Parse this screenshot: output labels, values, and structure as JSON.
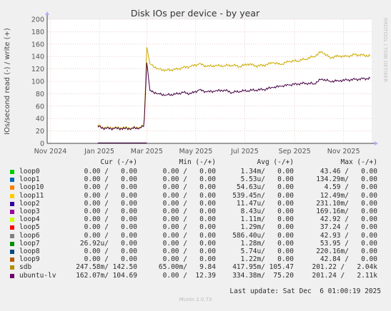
{
  "chart_data": {
    "type": "line",
    "title": "Disk IOs per device - by year",
    "ylabel": "IOs/second read (-) / write (+)",
    "ylim": [
      0,
      200
    ],
    "yticks": [
      0,
      20,
      40,
      60,
      80,
      100,
      120,
      140,
      160,
      180,
      200
    ],
    "xticks": [
      "Nov 2024",
      "Jan 2025",
      "Mar 2025",
      "May 2025",
      "Jul 2025",
      "Sep 2025",
      "Nov 2025"
    ],
    "x_range": [
      "2024-10-28",
      "2025-12-06"
    ],
    "grid": true,
    "series": [
      {
        "name": "sdb",
        "color": "#ccaa00",
        "x": [
          "2024-12-30",
          "2025-01-03",
          "2025-01-10",
          "2025-01-20",
          "2025-02-01",
          "2025-02-10",
          "2025-02-20",
          "2025-02-25",
          "2025-02-26",
          "2025-02-27",
          "2025-03-01",
          "2025-03-05",
          "2025-03-15",
          "2025-03-25",
          "2025-04-05",
          "2025-04-15",
          "2025-04-25",
          "2025-05-05",
          "2025-05-15",
          "2025-05-25",
          "2025-06-05",
          "2025-06-15",
          "2025-06-25",
          "2025-07-05",
          "2025-07-15",
          "2025-07-25",
          "2025-08-05",
          "2025-08-15",
          "2025-08-25",
          "2025-09-05",
          "2025-09-15",
          "2025-09-25",
          "2025-10-05",
          "2025-10-15",
          "2025-10-25",
          "2025-11-05",
          "2025-11-15",
          "2025-11-25",
          "2025-12-04"
        ],
        "values": [
          30,
          26,
          25,
          25,
          25,
          25,
          26,
          28,
          45,
          80,
          155,
          128,
          120,
          118,
          119,
          122,
          124,
          128,
          124,
          125,
          125,
          126,
          124,
          128,
          125,
          126,
          130,
          127,
          132,
          133,
          136,
          140,
          148,
          138,
          141,
          140,
          143,
          142,
          141
        ]
      },
      {
        "name": "ubuntu-lv",
        "color": "#440044",
        "x": [
          "2024-12-30",
          "2025-01-03",
          "2025-01-10",
          "2025-01-20",
          "2025-02-01",
          "2025-02-10",
          "2025-02-20",
          "2025-02-25",
          "2025-02-26",
          "2025-02-27",
          "2025-03-01",
          "2025-03-05",
          "2025-03-15",
          "2025-03-25",
          "2025-04-05",
          "2025-04-15",
          "2025-04-25",
          "2025-05-05",
          "2025-05-15",
          "2025-05-25",
          "2025-06-05",
          "2025-06-15",
          "2025-06-25",
          "2025-07-05",
          "2025-07-15",
          "2025-07-25",
          "2025-08-05",
          "2025-08-15",
          "2025-08-25",
          "2025-09-05",
          "2025-09-15",
          "2025-09-25",
          "2025-10-05",
          "2025-10-15",
          "2025-10-25",
          "2025-11-05",
          "2025-11-15",
          "2025-11-25",
          "2025-12-04"
        ],
        "values": [
          28,
          25,
          24,
          24,
          24,
          24,
          25,
          27,
          40,
          70,
          130,
          85,
          80,
          78,
          79,
          82,
          80,
          86,
          83,
          84,
          86,
          82,
          84,
          85,
          86,
          87,
          90,
          92,
          94,
          96,
          97,
          96,
          104,
          100,
          101,
          102,
          103,
          104,
          105
        ]
      }
    ]
  },
  "side_text": "RRDTOOL / TOBI OETIKER",
  "legend": {
    "headers": {
      "cur": "Cur (-/+)",
      "min": "Min (-/+)",
      "avg": "Avg (-/+)",
      "max": "Max (-/+)"
    },
    "rows": [
      {
        "name": "loop0",
        "color": "#00cc00",
        "cur": "0.00 /   0.00",
        "min": "0.00 /   0.00",
        "avg": "1.34m/   0.00",
        "max": "43.46 /   0.00"
      },
      {
        "name": "loop1",
        "color": "#0066b3",
        "cur": "0.00 /   0.00",
        "min": "0.00 /   0.00",
        "avg": "5.53u/   0.00",
        "max": "134.29m/   0.00"
      },
      {
        "name": "loop10",
        "color": "#ff8000",
        "cur": "0.00 /   0.00",
        "min": "0.00 /   0.00",
        "avg": "54.63u/   0.00",
        "max": "4.59 /   0.00"
      },
      {
        "name": "loop11",
        "color": "#ffcc00",
        "cur": "0.00 /   0.00",
        "min": "0.00 /   0.00",
        "avg": "539.45n/   0.00",
        "max": "12.49m/   0.00"
      },
      {
        "name": "loop2",
        "color": "#330099",
        "cur": "0.00 /   0.00",
        "min": "0.00 /   0.00",
        "avg": "11.47u/   0.00",
        "max": "231.10m/   0.00"
      },
      {
        "name": "loop3",
        "color": "#990099",
        "cur": "0.00 /   0.00",
        "min": "0.00 /   0.00",
        "avg": "8.43u/   0.00",
        "max": "169.16m/   0.00"
      },
      {
        "name": "loop4",
        "color": "#ccff00",
        "cur": "0.00 /   0.00",
        "min": "0.00 /   0.00",
        "avg": "1.11m/   0.00",
        "max": "42.92 /   0.00"
      },
      {
        "name": "loop5",
        "color": "#ff0000",
        "cur": "0.00 /   0.00",
        "min": "0.00 /   0.00",
        "avg": "1.29m/   0.00",
        "max": "37.24 /   0.00"
      },
      {
        "name": "loop6",
        "color": "#808080",
        "cur": "0.00 /   0.00",
        "min": "0.00 /   0.00",
        "avg": "586.40u/   0.00",
        "max": "42.93 /   0.00"
      },
      {
        "name": "loop7",
        "color": "#008f00",
        "cur": "26.92u/   0.00",
        "min": "0.00 /   0.00",
        "avg": "1.28m/   0.00",
        "max": "53.95 /   0.00"
      },
      {
        "name": "loop8",
        "color": "#00487d",
        "cur": "0.00 /   0.00",
        "min": "0.00 /   0.00",
        "avg": "5.74u/   0.00",
        "max": "220.16m/   0.00"
      },
      {
        "name": "loop9",
        "color": "#b35a00",
        "cur": "0.00 /   0.00",
        "min": "0.00 /   0.00",
        "avg": "1.22m/   0.00",
        "max": "42.84 /   0.00"
      },
      {
        "name": "sdb",
        "color": "#b38f00",
        "cur": "247.58m/ 142.50",
        "min": "65.00m/   9.84",
        "avg": "417.95m/ 105.47",
        "max": "201.22 /   2.04k"
      },
      {
        "name": "ubuntu-lv",
        "color": "#6b006b",
        "cur": "162.07m/ 104.69",
        "min": "0.00 /  12.39",
        "avg": "334.38m/  75.20",
        "max": "201.24 /   2.11k"
      }
    ],
    "last_update": "Last update: Sat Dec  6 01:00:19 2025"
  },
  "footer": "Munin 2.0.73"
}
